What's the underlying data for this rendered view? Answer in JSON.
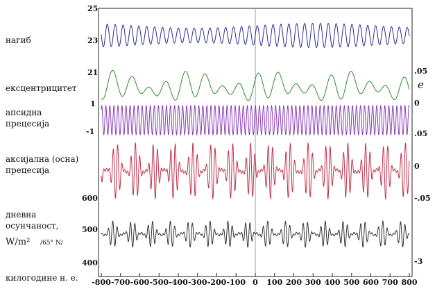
{
  "chart_data": {
    "type": "line",
    "x_label": "килогодине н. е.",
    "x_ticks": [
      -800,
      -700,
      -600,
      -500,
      -400,
      -300,
      -200,
      -100,
      0,
      100,
      200,
      300,
      400,
      500,
      600,
      700,
      800
    ],
    "x_range": [
      -800,
      800
    ],
    "rows": [
      {
        "id": "obliquity",
        "label_lines": [
          "нагиб"
        ],
        "color": "#2a2a9a",
        "left_ticks": [
          "25",
          "23"
        ],
        "right_ticks": [],
        "wave": {
          "period": 41,
          "center": 23.6,
          "base_amp": 0.6,
          "mod_amp": 0.15,
          "mod_period": 1250,
          "range": [
            22.7,
            24.5
          ]
        }
      },
      {
        "id": "eccentricity",
        "label_lines": [
          "ексцентрицитет"
        ],
        "color": "#2c8a2c",
        "left_ticks": [
          "21"
        ],
        "right_ticks": [
          ".05"
        ],
        "right_symbol": "e",
        "wave": {
          "period": 100,
          "center": 0.028,
          "base_amp": 0.02,
          "mod_amp": 0.012,
          "mod_period": 405,
          "range": [
            0.0,
            0.06
          ]
        }
      },
      {
        "id": "apsidal",
        "label_lines": [
          "апсидна",
          "прецесија"
        ],
        "color": "#8a3fb8",
        "left_ticks": [
          "1",
          "-1"
        ],
        "right_ticks": [
          "0"
        ],
        "wave": {
          "period": 21,
          "center": 0,
          "base_amp": 1,
          "mod_amp": 0,
          "mod_period": 1000,
          "range": [
            -1,
            1
          ]
        }
      },
      {
        "id": "axial",
        "label_lines": [
          "аксијална (осна)",
          "прецесија"
        ],
        "color": "#c0304a",
        "left_ticks": [],
        "right_ticks": [
          ".05",
          "0",
          "-.05"
        ],
        "wave": {
          "period": 23,
          "center": 0,
          "base_amp": 0.025,
          "mod_amp": 0.03,
          "mod_period": 100,
          "range": [
            -0.06,
            0.06
          ]
        }
      },
      {
        "id": "insolation",
        "label_lines": [
          "дневна",
          "осунчаност,"
        ],
        "units": "W/m²",
        "latitude": "/65° N/",
        "color": "#333333",
        "left_ticks": [
          "600",
          "500",
          "400"
        ],
        "right_ticks": [
          "-3"
        ],
        "wave": {
          "period": 23,
          "center": 495,
          "base_amp": 15,
          "mod_amp": 20,
          "mod_period": 100,
          "range": [
            430,
            560
          ]
        }
      }
    ]
  }
}
